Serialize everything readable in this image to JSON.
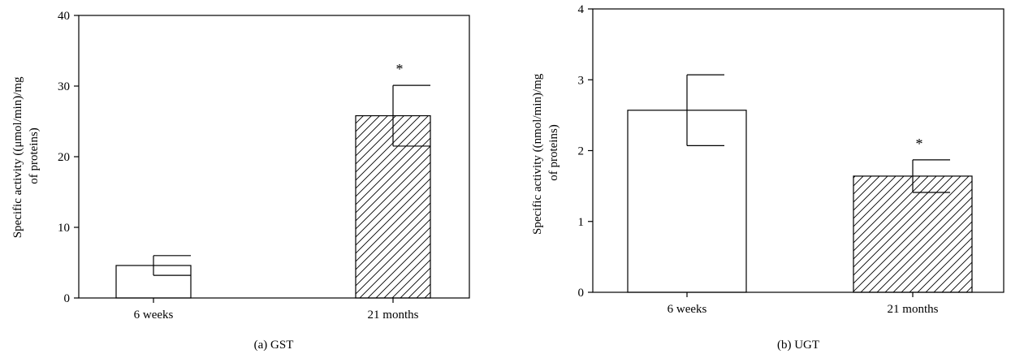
{
  "chart_data": [
    {
      "type": "bar",
      "caption": "(a)  GST",
      "ylabel": "Specific activity ((μmol/min)/mg of proteins)",
      "ylabel_lines": [
        "Specific activity ((μmol/min)/mg",
        "of proteins)"
      ],
      "categories": [
        "6 weeks",
        "21 months"
      ],
      "values": [
        4.6,
        25.8
      ],
      "error": [
        1.4,
        4.3
      ],
      "significance": [
        "",
        "*"
      ],
      "patterns": [
        "none",
        "diagonal-hatch"
      ],
      "ylim": [
        0,
        40
      ],
      "yticks": [
        0,
        10,
        20,
        30,
        40
      ]
    },
    {
      "type": "bar",
      "caption": "(b)  UGT",
      "ylabel": "Specific activity ((nmol/min)/mg of proteins)",
      "ylabel_lines": [
        "Specific activity ((nmol/min)/mg",
        "of proteins)"
      ],
      "categories": [
        "6 weeks",
        "21 months"
      ],
      "values": [
        2.57,
        1.64
      ],
      "error": [
        0.5,
        0.23
      ],
      "significance": [
        "",
        "*"
      ],
      "patterns": [
        "none",
        "diagonal-hatch"
      ],
      "ylim": [
        0,
        4
      ],
      "yticks": [
        0,
        1,
        2,
        3,
        4
      ]
    }
  ]
}
